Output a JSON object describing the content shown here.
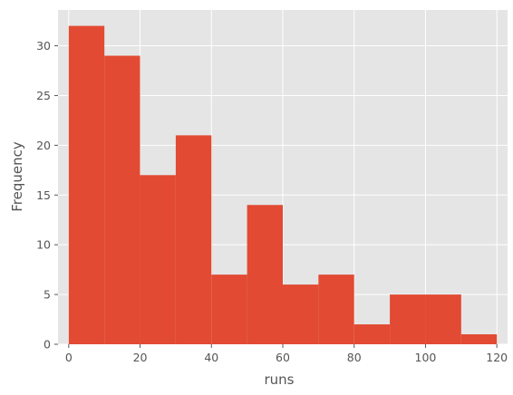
{
  "chart_data": {
    "type": "bar",
    "subtype": "histogram",
    "title": "",
    "xlabel": "runs",
    "ylabel": "Frequency",
    "bin_edges": [
      0,
      10,
      20,
      30,
      40,
      50,
      60,
      70,
      80,
      90,
      100,
      110,
      120
    ],
    "values": [
      32,
      29,
      17,
      21,
      7,
      14,
      6,
      7,
      2,
      5,
      5,
      1
    ],
    "xlim": [
      -3,
      123
    ],
    "ylim": [
      0,
      33.6
    ],
    "xticks": [
      0,
      20,
      40,
      60,
      80,
      100,
      120
    ],
    "yticks": [
      0,
      5,
      10,
      15,
      20,
      25,
      30
    ],
    "grid": true,
    "colors": {
      "bar": "#E24A33",
      "background": "#E5E5E5",
      "grid": "#FFFFFF",
      "text": "#555555"
    }
  }
}
